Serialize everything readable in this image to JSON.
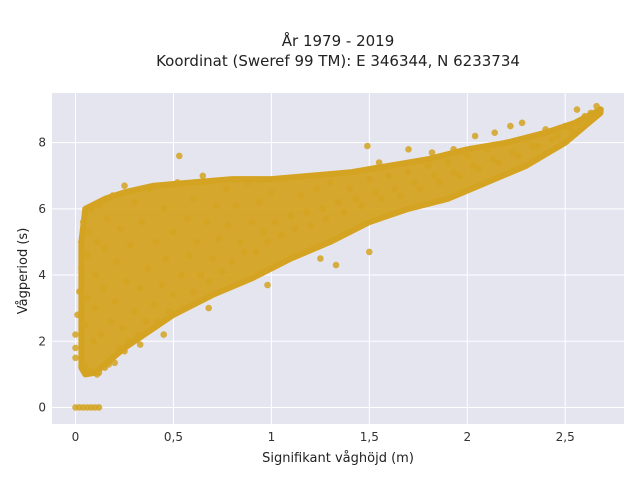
{
  "chart_data": {
    "type": "scatter",
    "title_lines": [
      "År 1979 - 2019",
      "Koordinat (Sweref 99 TM): E 346344, N 6233734"
    ],
    "xlabel": "Signifikant våghöjd (m)",
    "ylabel": "Vågperiod (s)",
    "xlim": [
      -0.12,
      2.8
    ],
    "ylim": [
      -0.5,
      9.5
    ],
    "x_ticks": [
      {
        "value": 0,
        "label": "0"
      },
      {
        "value": 0.5,
        "label": "0,5"
      },
      {
        "value": 1,
        "label": "1"
      },
      {
        "value": 1.5,
        "label": "1,5"
      },
      {
        "value": 2,
        "label": "2"
      },
      {
        "value": 2.5,
        "label": "2,5"
      }
    ],
    "y_ticks": [
      {
        "value": 0,
        "label": "0"
      },
      {
        "value": 2,
        "label": "2"
      },
      {
        "value": 4,
        "label": "4"
      },
      {
        "value": 6,
        "label": "6"
      },
      {
        "value": 8,
        "label": "8"
      }
    ],
    "grid": true,
    "legend": "none",
    "colors": {
      "background": "#e5e5f0",
      "grid": "#ffffff",
      "marker": "#d4a321"
    },
    "series": [
      {
        "points": [
          [
            0.0,
            0.0
          ],
          [
            0.02,
            0.0
          ],
          [
            0.04,
            0.0
          ],
          [
            0.06,
            0.0
          ],
          [
            0.08,
            0.0
          ],
          [
            0.1,
            0.0
          ],
          [
            0.12,
            0.0
          ],
          [
            0.0,
            1.5
          ],
          [
            0.0,
            1.8
          ],
          [
            0.0,
            2.2
          ],
          [
            0.01,
            2.8
          ],
          [
            0.02,
            3.5
          ],
          [
            0.03,
            4.2
          ],
          [
            0.03,
            5.0
          ],
          [
            0.04,
            5.6
          ],
          [
            0.05,
            1.2
          ],
          [
            0.05,
            2.5
          ],
          [
            0.06,
            3.3
          ],
          [
            0.06,
            4.6
          ],
          [
            0.07,
            5.3
          ],
          [
            0.08,
            6.0
          ],
          [
            0.08,
            1.1
          ],
          [
            0.09,
            2.0
          ],
          [
            0.1,
            3.0
          ],
          [
            0.1,
            4.0
          ],
          [
            0.11,
            5.0
          ],
          [
            0.12,
            6.1
          ],
          [
            0.12,
            1.05
          ],
          [
            0.13,
            2.2
          ],
          [
            0.14,
            3.6
          ],
          [
            0.15,
            4.8
          ],
          [
            0.16,
            5.7
          ],
          [
            0.17,
            1.3
          ],
          [
            0.18,
            2.6
          ],
          [
            0.19,
            6.4
          ],
          [
            0.2,
            3.2
          ],
          [
            0.21,
            4.4
          ],
          [
            0.22,
            1.8
          ],
          [
            0.23,
            5.4
          ],
          [
            0.24,
            2.4
          ],
          [
            0.25,
            6.7
          ],
          [
            0.26,
            3.8
          ],
          [
            0.27,
            2.0
          ],
          [
            0.28,
            4.9
          ],
          [
            0.3,
            2.9
          ],
          [
            0.3,
            6.2
          ],
          [
            0.32,
            2.2
          ],
          [
            0.33,
            3.6
          ],
          [
            0.34,
            5.6
          ],
          [
            0.36,
            2.6
          ],
          [
            0.37,
            4.2
          ],
          [
            0.38,
            6.6
          ],
          [
            0.4,
            3.1
          ],
          [
            0.41,
            5.0
          ],
          [
            0.42,
            2.6
          ],
          [
            0.44,
            3.7
          ],
          [
            0.45,
            6.0
          ],
          [
            0.46,
            4.5
          ],
          [
            0.48,
            2.9
          ],
          [
            0.5,
            3.4
          ],
          [
            0.5,
            5.3
          ],
          [
            0.52,
            6.8
          ],
          [
            0.54,
            4.0
          ],
          [
            0.55,
            3.0
          ],
          [
            0.57,
            5.7
          ],
          [
            0.58,
            4.6
          ],
          [
            0.6,
            3.5
          ],
          [
            0.6,
            6.3
          ],
          [
            0.62,
            5.0
          ],
          [
            0.64,
            4.0
          ],
          [
            0.65,
            7.0
          ],
          [
            0.67,
            5.6
          ],
          [
            0.68,
            3.8
          ],
          [
            0.7,
            4.5
          ],
          [
            0.72,
            6.1
          ],
          [
            0.73,
            5.1
          ],
          [
            0.75,
            4.1
          ],
          [
            0.77,
            6.6
          ],
          [
            0.78,
            5.5
          ],
          [
            0.8,
            4.4
          ],
          [
            0.82,
            6.1
          ],
          [
            0.84,
            5.0
          ],
          [
            0.86,
            4.7
          ],
          [
            0.88,
            6.8
          ],
          [
            0.9,
            5.6
          ],
          [
            0.92,
            4.7
          ],
          [
            0.94,
            6.2
          ],
          [
            0.96,
            5.3
          ],
          [
            0.98,
            5.0
          ],
          [
            1.0,
            6.5
          ],
          [
            1.02,
            5.6
          ],
          [
            1.05,
            5.2
          ],
          [
            1.07,
            6.9
          ],
          [
            1.1,
            5.8
          ],
          [
            1.12,
            5.4
          ],
          [
            1.15,
            6.4
          ],
          [
            1.18,
            5.9
          ],
          [
            1.2,
            5.5
          ],
          [
            1.23,
            6.6
          ],
          [
            1.26,
            6.0
          ],
          [
            1.28,
            5.7
          ],
          [
            1.3,
            6.8
          ],
          [
            1.34,
            6.2
          ],
          [
            1.37,
            5.9
          ],
          [
            1.4,
            6.6
          ],
          [
            1.43,
            6.3
          ],
          [
            1.46,
            6.1
          ],
          [
            1.5,
            6.9
          ],
          [
            1.53,
            6.5
          ],
          [
            1.56,
            6.3
          ],
          [
            1.6,
            7.0
          ],
          [
            1.63,
            6.6
          ],
          [
            1.66,
            6.4
          ],
          [
            1.7,
            7.1
          ],
          [
            1.73,
            6.8
          ],
          [
            1.76,
            6.6
          ],
          [
            1.8,
            7.3
          ],
          [
            1.83,
            7.0
          ],
          [
            1.86,
            6.8
          ],
          [
            1.9,
            7.4
          ],
          [
            1.93,
            7.1
          ],
          [
            1.96,
            7.0
          ],
          [
            2.0,
            7.6
          ],
          [
            2.03,
            7.3
          ],
          [
            2.06,
            7.2
          ],
          [
            2.1,
            7.8
          ],
          [
            2.13,
            7.5
          ],
          [
            2.16,
            7.4
          ],
          [
            2.2,
            8.0
          ],
          [
            2.23,
            7.7
          ],
          [
            2.26,
            7.6
          ],
          [
            2.3,
            8.1
          ],
          [
            2.33,
            7.9
          ],
          [
            2.36,
            7.9
          ],
          [
            2.4,
            8.4
          ],
          [
            2.43,
            8.1
          ],
          [
            2.46,
            8.2
          ],
          [
            2.5,
            8.5
          ],
          [
            2.53,
            8.4
          ],
          [
            2.57,
            8.6
          ],
          [
            2.6,
            8.8
          ],
          [
            2.63,
            8.9
          ],
          [
            2.66,
            9.1
          ],
          [
            2.68,
            9.0
          ],
          [
            2.56,
            9.0
          ],
          [
            0.53,
            7.6
          ],
          [
            1.49,
            7.9
          ],
          [
            1.55,
            7.4
          ],
          [
            1.7,
            7.8
          ],
          [
            1.82,
            7.7
          ],
          [
            1.93,
            7.8
          ],
          [
            2.04,
            8.2
          ],
          [
            2.14,
            8.3
          ],
          [
            2.22,
            8.5
          ],
          [
            2.28,
            8.6
          ],
          [
            1.5,
            4.7
          ],
          [
            1.33,
            4.3
          ],
          [
            1.25,
            4.5
          ],
          [
            0.98,
            3.7
          ],
          [
            0.68,
            3.0
          ],
          [
            0.45,
            2.2
          ],
          [
            0.33,
            1.9
          ],
          [
            0.25,
            1.7
          ],
          [
            0.2,
            1.35
          ],
          [
            0.15,
            1.2
          ],
          [
            0.11,
            1.0
          ]
        ],
        "band": {
          "x_start": 0.03,
          "x_end": 2.68,
          "upper": [
            [
              0.03,
              5.0
            ],
            [
              0.05,
              6.0
            ],
            [
              0.15,
              6.3
            ],
            [
              0.25,
              6.5
            ],
            [
              0.4,
              6.7
            ],
            [
              0.6,
              6.8
            ],
            [
              0.8,
              6.9
            ],
            [
              1.0,
              6.9
            ],
            [
              1.2,
              7.0
            ],
            [
              1.4,
              7.1
            ],
            [
              1.6,
              7.3
            ],
            [
              1.8,
              7.5
            ],
            [
              2.0,
              7.8
            ],
            [
              2.2,
              8.0
            ],
            [
              2.4,
              8.3
            ],
            [
              2.55,
              8.6
            ],
            [
              2.68,
              9.0
            ]
          ],
          "lower": [
            [
              0.03,
              1.2
            ],
            [
              0.05,
              1.0
            ],
            [
              0.1,
              1.05
            ],
            [
              0.15,
              1.3
            ],
            [
              0.25,
              1.8
            ],
            [
              0.35,
              2.2
            ],
            [
              0.5,
              2.8
            ],
            [
              0.7,
              3.4
            ],
            [
              0.9,
              3.9
            ],
            [
              1.1,
              4.5
            ],
            [
              1.3,
              5.0
            ],
            [
              1.5,
              5.6
            ],
            [
              1.7,
              6.0
            ],
            [
              1.9,
              6.3
            ],
            [
              2.1,
              6.8
            ],
            [
              2.3,
              7.3
            ],
            [
              2.5,
              8.0
            ],
            [
              2.68,
              8.9
            ]
          ]
        }
      }
    ]
  }
}
